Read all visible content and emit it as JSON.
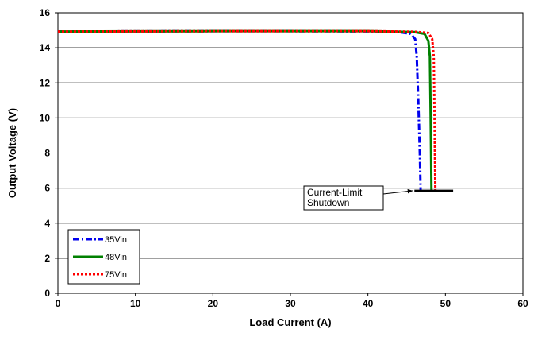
{
  "chart_data": {
    "type": "line",
    "xlabel": "Load Current (A)",
    "ylabel": "Output Voltage (V)",
    "xlim": [
      0,
      60
    ],
    "ylim": [
      0,
      16
    ],
    "x_ticks": [
      "0",
      "10",
      "20",
      "30",
      "40",
      "50",
      "60"
    ],
    "y_ticks": [
      "0",
      "2",
      "4",
      "6",
      "8",
      "10",
      "12",
      "14",
      "16"
    ],
    "grid": "horizontal",
    "legend_position": "bottom-left",
    "series": [
      {
        "name": "35Vin",
        "color": "#0000ee",
        "style": "dash-dot",
        "points": [
          [
            0,
            14.93
          ],
          [
            10,
            14.94
          ],
          [
            20,
            14.95
          ],
          [
            30,
            14.95
          ],
          [
            40,
            14.94
          ],
          [
            44,
            14.9
          ],
          [
            45.5,
            14.8
          ],
          [
            46.1,
            14.5
          ],
          [
            46.3,
            13.5
          ],
          [
            46.5,
            11
          ],
          [
            46.7,
            8
          ],
          [
            46.8,
            5.9
          ]
        ]
      },
      {
        "name": "48Vin",
        "color": "#008000",
        "style": "solid",
        "points": [
          [
            0,
            14.93
          ],
          [
            10,
            14.94
          ],
          [
            20,
            14.95
          ],
          [
            30,
            14.95
          ],
          [
            40,
            14.95
          ],
          [
            46,
            14.9
          ],
          [
            47.3,
            14.8
          ],
          [
            47.8,
            14.4
          ],
          [
            48,
            13.5
          ],
          [
            48.1,
            10
          ],
          [
            48.2,
            5.9
          ]
        ]
      },
      {
        "name": "75Vin",
        "color": "#ff0000",
        "style": "dotted",
        "points": [
          [
            0,
            14.93
          ],
          [
            10,
            14.94
          ],
          [
            20,
            14.95
          ],
          [
            30,
            14.95
          ],
          [
            40,
            14.95
          ],
          [
            46,
            14.92
          ],
          [
            47.8,
            14.85
          ],
          [
            48.3,
            14.5
          ],
          [
            48.5,
            13.5
          ],
          [
            48.6,
            10
          ],
          [
            48.7,
            5.9
          ]
        ]
      }
    ],
    "annotation": {
      "lines": [
        "Current-Limit",
        "Shutdown"
      ],
      "baseline": {
        "x1": 46,
        "x2": 51,
        "y": 5.85
      },
      "arrow_target": {
        "x": 46,
        "y": 5.85
      }
    }
  }
}
